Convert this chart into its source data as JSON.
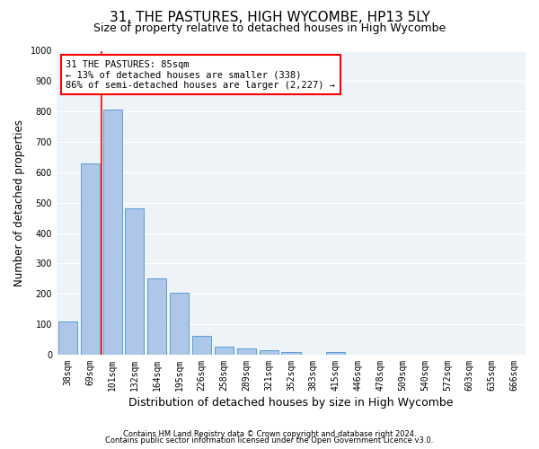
{
  "title1": "31, THE PASTURES, HIGH WYCOMBE, HP13 5LY",
  "title2": "Size of property relative to detached houses in High Wycombe",
  "xlabel": "Distribution of detached houses by size in High Wycombe",
  "ylabel": "Number of detached properties",
  "footer1": "Contains HM Land Registry data © Crown copyright and database right 2024.",
  "footer2": "Contains public sector information licensed under the Open Government Licence v3.0.",
  "bar_labels": [
    "38sqm",
    "69sqm",
    "101sqm",
    "132sqm",
    "164sqm",
    "195sqm",
    "226sqm",
    "258sqm",
    "289sqm",
    "321sqm",
    "352sqm",
    "383sqm",
    "415sqm",
    "446sqm",
    "478sqm",
    "509sqm",
    "540sqm",
    "572sqm",
    "603sqm",
    "635sqm",
    "666sqm"
  ],
  "bar_values": [
    110,
    630,
    805,
    480,
    250,
    205,
    62,
    27,
    20,
    14,
    8,
    0,
    9,
    0,
    0,
    0,
    0,
    0,
    0,
    0,
    0
  ],
  "bar_color": "#aec6e8",
  "bar_edge_color": "#5a9fd4",
  "annotation_text": "31 THE PASTURES: 85sqm\n← 13% of detached houses are smaller (338)\n86% of semi-detached houses are larger (2,227) →",
  "annotation_box_color": "white",
  "annotation_box_edge": "red",
  "ylim": [
    0,
    1000
  ],
  "yticks": [
    0,
    100,
    200,
    300,
    400,
    500,
    600,
    700,
    800,
    900,
    1000
  ],
  "bg_color": "#eef3f8",
  "grid_color": "white",
  "title1_fontsize": 11,
  "title2_fontsize": 9,
  "xlabel_fontsize": 9,
  "ylabel_fontsize": 8.5,
  "footer_fontsize": 6,
  "tick_fontsize": 7,
  "annot_fontsize": 7.5
}
